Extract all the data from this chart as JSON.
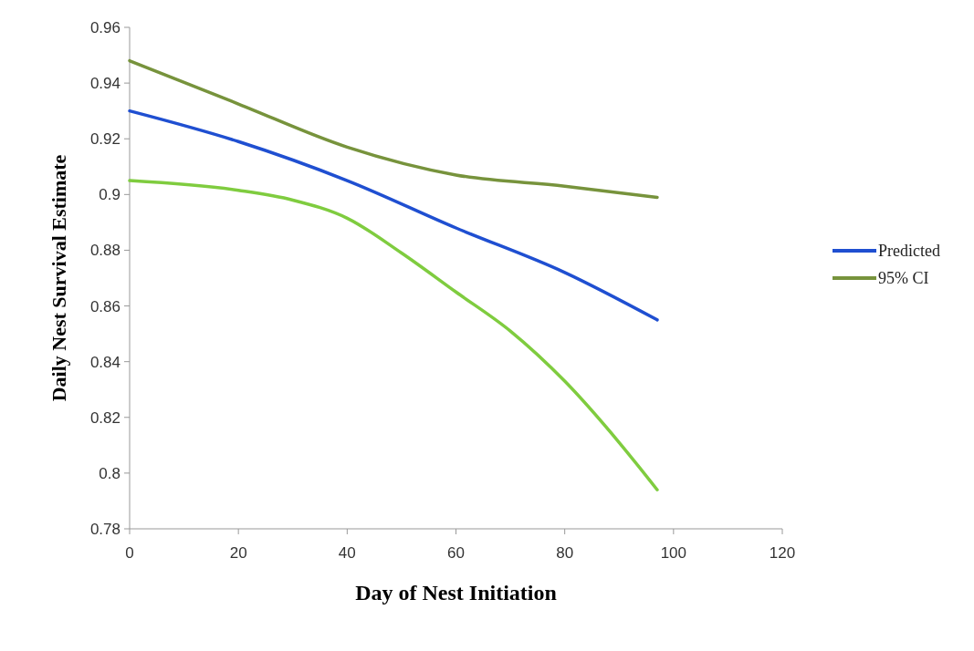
{
  "chart_data": {
    "type": "line",
    "xlabel": "Day of Nest Initiation",
    "ylabel": "Daily Nest Survival Estimate",
    "x": [
      0,
      20,
      40,
      60,
      80,
      97
    ],
    "series": [
      {
        "name": "Predicted",
        "color": "#1f4fd1",
        "values": [
          0.93,
          0.919,
          0.905,
          0.888,
          0.872,
          0.855
        ]
      },
      {
        "name": "95% CI",
        "color": "#77933c",
        "values": [
          0.948,
          0.9325,
          0.917,
          0.907,
          0.903,
          0.899
        ]
      },
      {
        "color": "#7fcc3f",
        "x": [
          0,
          20,
          30,
          40,
          50,
          60,
          70,
          80,
          90,
          97
        ],
        "values": [
          0.905,
          0.9015,
          0.898,
          0.8915,
          0.879,
          0.865,
          0.851,
          0.833,
          0.811,
          0.794
        ]
      }
    ],
    "xlim": [
      0,
      120
    ],
    "xticks": [
      0,
      20,
      40,
      60,
      80,
      100,
      120
    ],
    "ylim": [
      0.78,
      0.96
    ],
    "yticks": [
      0.78,
      0.8,
      0.82,
      0.84,
      0.86,
      0.88,
      0.9,
      0.92,
      0.94,
      0.96
    ],
    "grid": false,
    "legend": "right",
    "marker": "none",
    "line_style": "solid"
  }
}
